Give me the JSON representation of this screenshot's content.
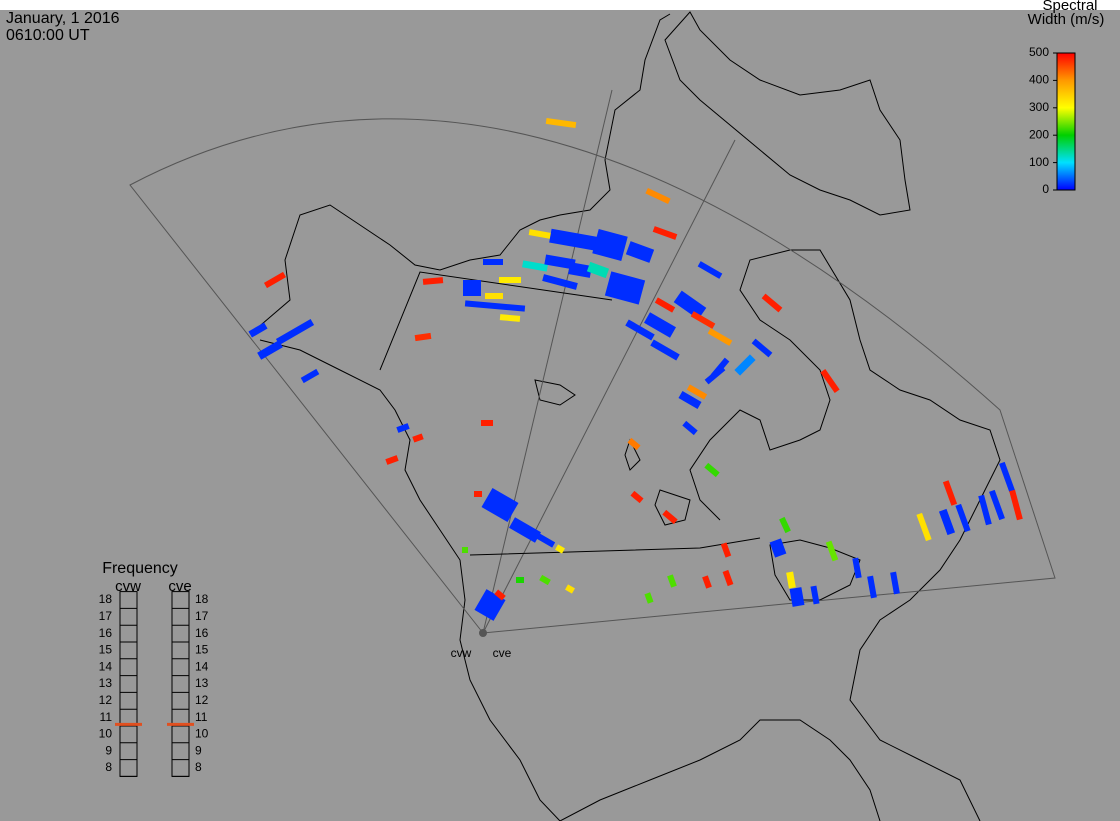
{
  "header": {
    "date": "January, 1 2016",
    "time": "0610:00 UT"
  },
  "colorbar": {
    "title": [
      "Spectral",
      "Width (m/s)"
    ],
    "lim": [
      0,
      500
    ],
    "ticks": [
      0,
      100,
      200,
      300,
      400,
      500
    ],
    "colors": [
      "#0000ff",
      "#00e0ff",
      "#00d000",
      "#ffff00",
      "#ff9900",
      "#ff0000"
    ]
  },
  "frequency": {
    "title": "Frequency",
    "lim": [
      8,
      18
    ],
    "ticks": [
      8,
      9,
      10,
      11,
      12,
      13,
      14,
      15,
      16,
      17,
      18
    ],
    "marker_color": "#e05020",
    "radars": [
      {
        "name": "cvw",
        "value": 10.6
      },
      {
        "name": "cve",
        "value": 10.6
      }
    ]
  },
  "radars": [
    "cvw",
    "cve"
  ],
  "cells": [
    370,
    410,
    480,
    480,
    470,
    20,
    20,
    20,
    20,
    330,
    20,
    20,
    20,
    480,
    120,
    20,
    20,
    130,
    20,
    20,
    330,
    20,
    320,
    320,
    20,
    20,
    480,
    20,
    20,
    20,
    20,
    470,
    400,
    20,
    480,
    480,
    20,
    60,
    20,
    20,
    20,
    410,
    20,
    480,
    20,
    480,
    480,
    420,
    220,
    480,
    480,
    20,
    20,
    480,
    20,
    320,
    230,
    480,
    220,
    20,
    240,
    480,
    480,
    230,
    230,
    20,
    320,
    20,
    20,
    20,
    20,
    330,
    20,
    480,
    20,
    20,
    20,
    20,
    480,
    230,
    210,
    330,
    20,
    480
  ]
}
